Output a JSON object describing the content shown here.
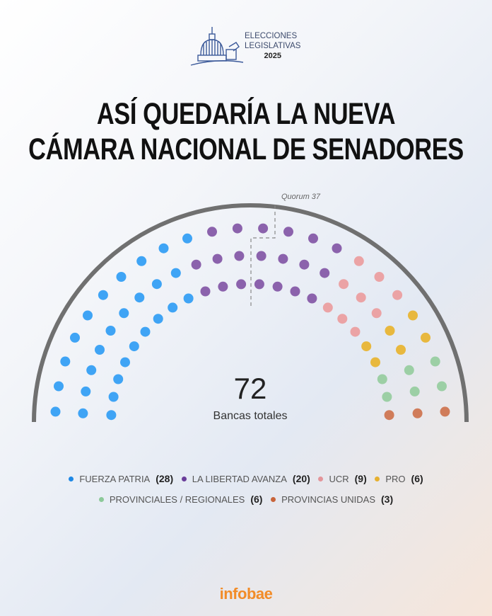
{
  "header": {
    "logo_line1": "ELECCIONES",
    "logo_line2": "LEGISLATIVAS",
    "logo_year": "2025",
    "title_line1": "ASÍ QUEDARÍA LA NUEVA",
    "title_line2": "CÁMARA NACIONAL DE SENADORES"
  },
  "chart_data": {
    "type": "parliament",
    "total": "72",
    "total_label": "Bancas totales",
    "quorum_label": "Quorum 37",
    "rows": 3,
    "series": [
      {
        "name": "FUERZA PATRIA",
        "value": 28,
        "count_label": "(28)",
        "color": "#3fa4f5",
        "legend_color": "#1e88e5"
      },
      {
        "name": "LA LIBERTAD AVANZA",
        "value": 20,
        "count_label": "(20)",
        "color": "#8b62ac",
        "legend_color": "#6a3d9a"
      },
      {
        "name": "UCR",
        "value": 9,
        "count_label": "(9)",
        "color": "#eba3a5",
        "legend_color": "#e3959a"
      },
      {
        "name": "PRO",
        "value": 6,
        "count_label": "(6)",
        "color": "#e8b83e",
        "legend_color": "#e6b030"
      },
      {
        "name": "PROVINCIALES / REGIONALES",
        "value": 6,
        "count_label": "(6)",
        "color": "#9ccfa5",
        "legend_color": "#8cc999"
      },
      {
        "name": "PROVINCIAS UNIDAS",
        "value": 3,
        "count_label": "(3)",
        "color": "#d07c5a",
        "legend_color": "#c8643a"
      }
    ]
  },
  "footer": {
    "brand": "infobae"
  }
}
